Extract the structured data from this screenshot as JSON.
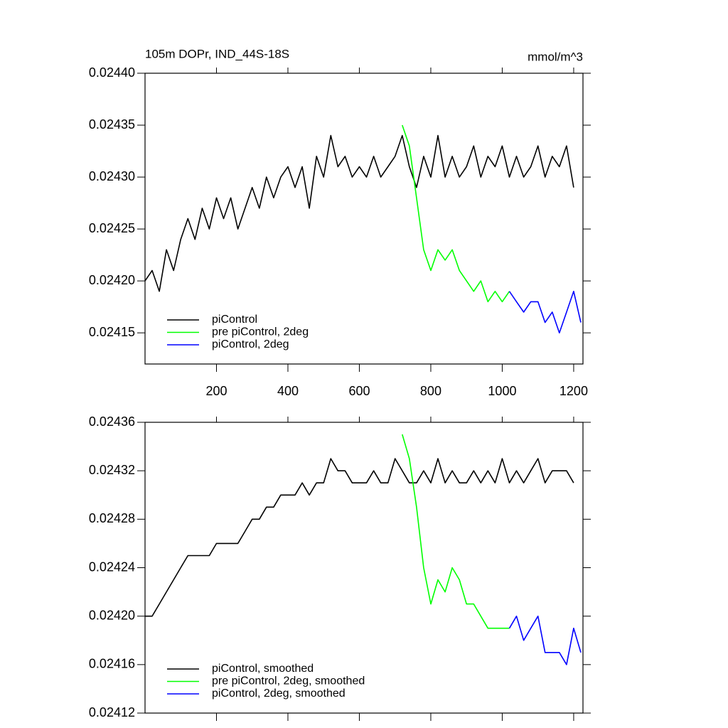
{
  "chart_data": [
    {
      "type": "line",
      "title": "105m DOPr, IND_44S-18S",
      "right_title": "mmol/m^3",
      "x": [
        0,
        20,
        40,
        60,
        80,
        100,
        120,
        140,
        160,
        180,
        200,
        220,
        240,
        260,
        280,
        300,
        320,
        340,
        360,
        380,
        400,
        420,
        440,
        460,
        480,
        500,
        520,
        540,
        560,
        580,
        600,
        620,
        640,
        660,
        680,
        700,
        720,
        740,
        760,
        780,
        800,
        820,
        840,
        860,
        880,
        900,
        920,
        940,
        960,
        980,
        1000,
        1020,
        1040,
        1060,
        1080,
        1100,
        1120,
        1140,
        1160,
        1180,
        1200,
        1220
      ],
      "xlim": [
        0,
        1226
      ],
      "xticks": [
        200,
        400,
        600,
        800,
        1000,
        1200
      ],
      "show_xtick_labels": true,
      "ylim": [
        0.02412,
        0.0244
      ],
      "yticks": [
        {
          "value": 0.0244,
          "label": "0.02440"
        },
        0.02435,
        {
          "value": 0.0243,
          "label": "0.02430"
        },
        0.02425,
        {
          "value": 0.0242,
          "label": "0.02420"
        },
        0.02415
      ],
      "legend": "lower left",
      "series": [
        {
          "name": "piControl",
          "color": "#000000",
          "values": [
            0.0242,
            0.02421,
            0.02419,
            0.02423,
            0.02421,
            0.02424,
            0.02426,
            0.02424,
            0.02427,
            0.02425,
            0.02428,
            0.02426,
            0.02428,
            0.02425,
            0.02427,
            0.02429,
            0.02427,
            0.0243,
            0.02428,
            0.0243,
            0.02431,
            0.02429,
            0.02431,
            0.02427,
            0.02432,
            0.0243,
            0.02434,
            0.02431,
            0.02432,
            0.0243,
            0.02431,
            0.0243,
            0.02432,
            0.0243,
            0.02431,
            0.02432,
            0.02434,
            0.02431,
            0.02429,
            0.02432,
            0.0243,
            0.02434,
            0.0243,
            0.02432,
            0.0243,
            0.02431,
            0.02433,
            0.0243,
            0.02432,
            0.02431,
            0.02433,
            0.0243,
            0.02432,
            0.0243,
            0.02431,
            0.02433,
            0.0243,
            0.02432,
            0.02431,
            0.02433,
            0.02429,
            null
          ]
        },
        {
          "name": "pre piControl, 2deg",
          "color": "#00ff00",
          "values": [
            null,
            null,
            null,
            null,
            null,
            null,
            null,
            null,
            null,
            null,
            null,
            null,
            null,
            null,
            null,
            null,
            null,
            null,
            null,
            null,
            null,
            null,
            null,
            null,
            null,
            null,
            null,
            null,
            null,
            null,
            null,
            null,
            null,
            null,
            null,
            null,
            0.02435,
            0.02433,
            0.02428,
            0.02423,
            0.02421,
            0.02423,
            0.02422,
            0.02423,
            0.02421,
            0.0242,
            0.02419,
            0.0242,
            0.02418,
            0.02419,
            0.02418,
            0.02419,
            null,
            null,
            null,
            null,
            null,
            null,
            null,
            null,
            null,
            null
          ]
        },
        {
          "name": "piControl, 2deg",
          "color": "#0000ff",
          "values": [
            null,
            null,
            null,
            null,
            null,
            null,
            null,
            null,
            null,
            null,
            null,
            null,
            null,
            null,
            null,
            null,
            null,
            null,
            null,
            null,
            null,
            null,
            null,
            null,
            null,
            null,
            null,
            null,
            null,
            null,
            null,
            null,
            null,
            null,
            null,
            null,
            null,
            null,
            null,
            null,
            null,
            null,
            null,
            null,
            null,
            null,
            null,
            null,
            null,
            null,
            null,
            0.02419,
            0.02418,
            0.02417,
            0.02418,
            0.02418,
            0.02416,
            0.02417,
            0.02415,
            0.02417,
            0.02419,
            0.02416
          ]
        }
      ]
    },
    {
      "type": "line",
      "x": [
        0,
        20,
        40,
        60,
        80,
        100,
        120,
        140,
        160,
        180,
        200,
        220,
        240,
        260,
        280,
        300,
        320,
        340,
        360,
        380,
        400,
        420,
        440,
        460,
        480,
        500,
        520,
        540,
        560,
        580,
        600,
        620,
        640,
        660,
        680,
        700,
        720,
        740,
        760,
        780,
        800,
        820,
        840,
        860,
        880,
        900,
        920,
        940,
        960,
        980,
        1000,
        1020,
        1040,
        1060,
        1080,
        1100,
        1120,
        1140,
        1160,
        1180,
        1200,
        1220
      ],
      "xlim": [
        0,
        1226
      ],
      "xticks": [
        200,
        400,
        600,
        800,
        1000,
        1200
      ],
      "show_xtick_labels": false,
      "ylim": [
        0.02412,
        0.02436
      ],
      "yticks": [
        0.02436,
        0.02432,
        0.02428,
        0.02424,
        {
          "value": 0.0242,
          "label": "0.02420"
        },
        0.02416,
        0.02412
      ],
      "legend": "lower left",
      "series": [
        {
          "name": "piControl, smoothed",
          "color": "#000000",
          "values": [
            0.0242,
            0.0242,
            0.02421,
            0.02422,
            0.02423,
            0.02424,
            0.02425,
            0.02425,
            0.02425,
            0.02425,
            0.02426,
            0.02426,
            0.02426,
            0.02426,
            0.02427,
            0.02428,
            0.02428,
            0.02429,
            0.02429,
            0.0243,
            0.0243,
            0.0243,
            0.02431,
            0.0243,
            0.02431,
            0.02431,
            0.02433,
            0.02432,
            0.02432,
            0.02431,
            0.02431,
            0.02431,
            0.02432,
            0.02431,
            0.02431,
            0.02433,
            0.02432,
            0.02431,
            0.02431,
            0.02432,
            0.02431,
            0.02433,
            0.02431,
            0.02432,
            0.02431,
            0.02431,
            0.02432,
            0.02431,
            0.02432,
            0.02431,
            0.02433,
            0.02431,
            0.02432,
            0.02431,
            0.02432,
            0.02433,
            0.02431,
            0.02432,
            0.02432,
            0.02432,
            0.02431,
            null
          ]
        },
        {
          "name": "pre piControl, 2deg, smoothed",
          "color": "#00ff00",
          "values": [
            null,
            null,
            null,
            null,
            null,
            null,
            null,
            null,
            null,
            null,
            null,
            null,
            null,
            null,
            null,
            null,
            null,
            null,
            null,
            null,
            null,
            null,
            null,
            null,
            null,
            null,
            null,
            null,
            null,
            null,
            null,
            null,
            null,
            null,
            null,
            null,
            0.02435,
            0.02433,
            0.02429,
            0.02424,
            0.02421,
            0.02423,
            0.02422,
            0.02424,
            0.02423,
            0.02421,
            0.02421,
            0.0242,
            0.02419,
            0.02419,
            0.02419,
            0.02419,
            null,
            null,
            null,
            null,
            null,
            null,
            null,
            null,
            null,
            null
          ]
        },
        {
          "name": "piControl, 2deg, smoothed",
          "color": "#0000ff",
          "values": [
            null,
            null,
            null,
            null,
            null,
            null,
            null,
            null,
            null,
            null,
            null,
            null,
            null,
            null,
            null,
            null,
            null,
            null,
            null,
            null,
            null,
            null,
            null,
            null,
            null,
            null,
            null,
            null,
            null,
            null,
            null,
            null,
            null,
            null,
            null,
            null,
            null,
            null,
            null,
            null,
            null,
            null,
            null,
            null,
            null,
            null,
            null,
            null,
            null,
            null,
            null,
            0.02419,
            0.0242,
            0.02418,
            0.02419,
            0.0242,
            0.02417,
            0.02417,
            0.02417,
            0.02416,
            0.02419,
            0.02417
          ]
        }
      ]
    }
  ]
}
